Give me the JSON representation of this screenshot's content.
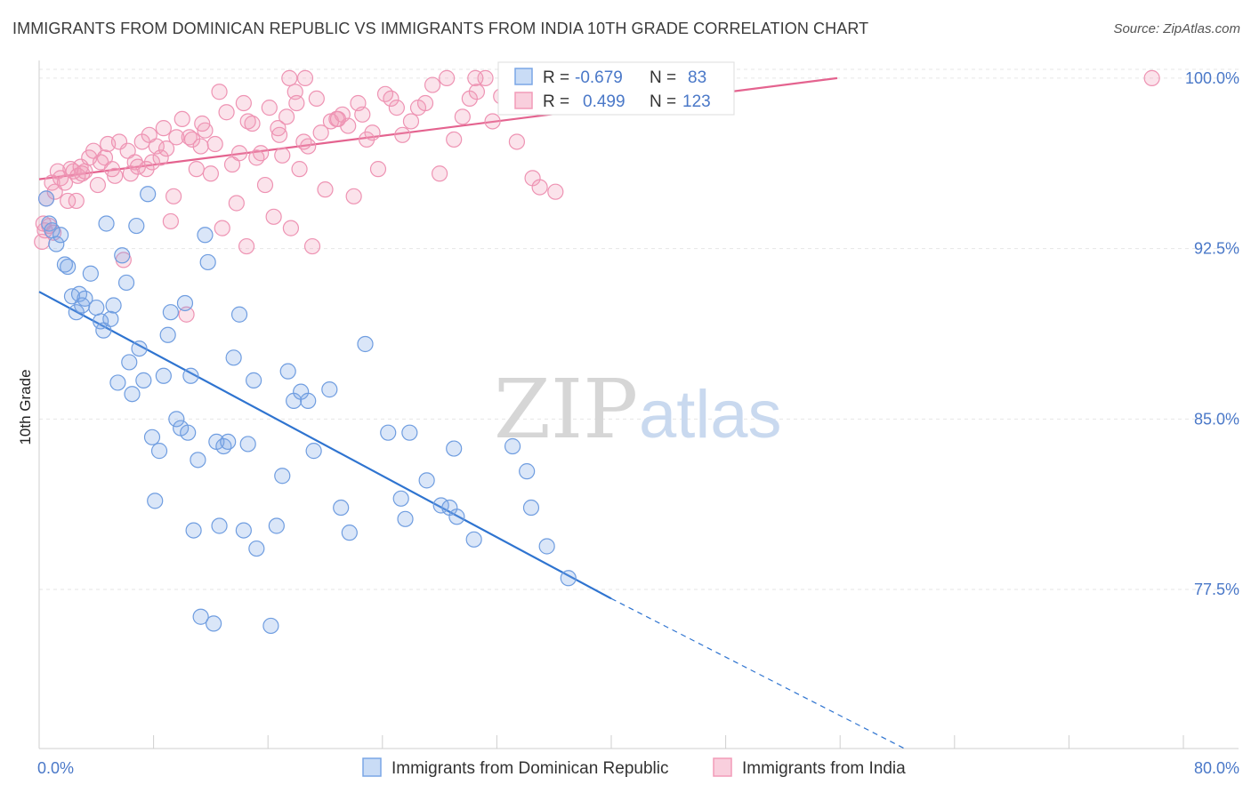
{
  "header": {
    "title": "IMMIGRANTS FROM DOMINICAN REPUBLIC VS IMMIGRANTS FROM INDIA 10TH GRADE CORRELATION CHART",
    "source": "Source: ZipAtlas.com"
  },
  "watermark": {
    "part1": "ZIP",
    "part2": "atlas"
  },
  "stats_box": {
    "rows": [
      {
        "r_label": "R =",
        "r_value": "-0.679",
        "n_label": "N =",
        "n_value": "83",
        "color": "#7aa6e6"
      },
      {
        "r_label": "R =",
        "r_value": "0.499",
        "n_label": "N =",
        "n_value": "123",
        "color": "#f29bb8"
      }
    ]
  },
  "legend": {
    "items": [
      {
        "label": "Immigrants from Dominican Republic",
        "color": "#7aa6e6"
      },
      {
        "label": "Immigrants from India",
        "color": "#f29bb8"
      }
    ]
  },
  "chart_data": {
    "type": "scatter",
    "xlabel": "",
    "ylabel": "10th Grade",
    "xlim": [
      0,
      80
    ],
    "ylim": [
      70.5,
      100.7
    ],
    "x_tick_labels": [
      "0.0%",
      "80.0%"
    ],
    "y_ticks": [
      77.5,
      85.0,
      92.5,
      100.0
    ],
    "y_tick_labels": [
      "77.5%",
      "85.0%",
      "92.5%",
      "100.0%"
    ],
    "grid": true,
    "legend_position": "bottom",
    "series": [
      {
        "name": "Immigrants from Dominican Republic",
        "color": "#7aa6e6",
        "trend": {
          "x0": 0,
          "y0": 90.6,
          "x1": 40,
          "y1": 77.1,
          "dash_to_x": 60.5,
          "dash_to_y": 70.5
        },
        "points": [
          [
            0.5,
            94.7
          ],
          [
            0.7,
            93.6
          ],
          [
            0.9,
            93.3
          ],
          [
            1.2,
            92.7
          ],
          [
            1.5,
            93.1
          ],
          [
            1.8,
            91.8
          ],
          [
            2.0,
            91.7
          ],
          [
            2.3,
            90.4
          ],
          [
            2.6,
            89.7
          ],
          [
            2.8,
            90.5
          ],
          [
            3.0,
            90.0
          ],
          [
            3.2,
            90.3
          ],
          [
            3.6,
            91.4
          ],
          [
            4.0,
            89.9
          ],
          [
            4.3,
            89.3
          ],
          [
            4.5,
            88.9
          ],
          [
            4.7,
            93.6
          ],
          [
            5.0,
            89.4
          ],
          [
            5.2,
            90.0
          ],
          [
            5.5,
            86.6
          ],
          [
            5.8,
            92.2
          ],
          [
            6.1,
            91.0
          ],
          [
            6.3,
            87.5
          ],
          [
            6.5,
            86.1
          ],
          [
            6.8,
            93.5
          ],
          [
            7.0,
            88.1
          ],
          [
            7.3,
            86.7
          ],
          [
            7.6,
            94.9
          ],
          [
            7.9,
            84.2
          ],
          [
            8.1,
            81.4
          ],
          [
            8.4,
            83.6
          ],
          [
            8.7,
            86.9
          ],
          [
            9.0,
            88.7
          ],
          [
            9.2,
            89.7
          ],
          [
            9.6,
            85.0
          ],
          [
            9.9,
            84.6
          ],
          [
            10.2,
            90.1
          ],
          [
            10.4,
            84.4
          ],
          [
            10.6,
            86.9
          ],
          [
            10.8,
            80.1
          ],
          [
            11.1,
            83.2
          ],
          [
            11.3,
            76.3
          ],
          [
            11.6,
            93.1
          ],
          [
            11.8,
            91.9
          ],
          [
            12.2,
            76.0
          ],
          [
            12.4,
            84.0
          ],
          [
            12.6,
            80.3
          ],
          [
            12.9,
            83.8
          ],
          [
            13.2,
            84.0
          ],
          [
            13.6,
            87.7
          ],
          [
            14.0,
            89.6
          ],
          [
            14.3,
            80.1
          ],
          [
            14.6,
            83.9
          ],
          [
            15.0,
            86.7
          ],
          [
            15.2,
            79.3
          ],
          [
            16.2,
            75.9
          ],
          [
            16.6,
            80.3
          ],
          [
            17.0,
            82.5
          ],
          [
            17.4,
            87.1
          ],
          [
            17.8,
            85.8
          ],
          [
            18.3,
            86.2
          ],
          [
            18.8,
            85.8
          ],
          [
            19.2,
            83.6
          ],
          [
            20.3,
            86.3
          ],
          [
            21.1,
            81.1
          ],
          [
            21.7,
            80.0
          ],
          [
            22.8,
            88.3
          ],
          [
            24.4,
            84.4
          ],
          [
            25.3,
            81.5
          ],
          [
            25.6,
            80.6
          ],
          [
            25.9,
            84.4
          ],
          [
            27.1,
            82.3
          ],
          [
            28.1,
            81.2
          ],
          [
            28.7,
            81.1
          ],
          [
            29.0,
            83.7
          ],
          [
            29.2,
            80.7
          ],
          [
            30.4,
            79.7
          ],
          [
            33.1,
            83.8
          ],
          [
            34.1,
            82.7
          ],
          [
            34.4,
            81.1
          ],
          [
            35.5,
            79.4
          ],
          [
            37.0,
            78.0
          ]
        ]
      },
      {
        "name": "Immigrants from India",
        "color": "#f29bb8",
        "trend": {
          "x0": 0,
          "y0": 95.55,
          "x1": 55.8,
          "y1": 100.0
        },
        "points": [
          [
            0.2,
            92.8
          ],
          [
            0.4,
            93.3
          ],
          [
            0.5,
            94.7
          ],
          [
            0.7,
            93.5
          ],
          [
            0.9,
            95.4
          ],
          [
            1.1,
            95.0
          ],
          [
            1.3,
            95.9
          ],
          [
            1.5,
            95.6
          ],
          [
            1.8,
            95.4
          ],
          [
            2.0,
            94.6
          ],
          [
            2.2,
            96.0
          ],
          [
            2.4,
            95.9
          ],
          [
            2.7,
            95.7
          ],
          [
            2.9,
            96.1
          ],
          [
            3.2,
            95.9
          ],
          [
            3.5,
            96.5
          ],
          [
            3.8,
            96.8
          ],
          [
            4.1,
            95.3
          ],
          [
            4.3,
            96.3
          ],
          [
            4.6,
            96.5
          ],
          [
            4.8,
            97.1
          ],
          [
            5.1,
            96.0
          ],
          [
            5.3,
            95.7
          ],
          [
            5.6,
            97.2
          ],
          [
            5.9,
            92.0
          ],
          [
            6.2,
            96.8
          ],
          [
            6.4,
            95.8
          ],
          [
            6.7,
            96.3
          ],
          [
            6.9,
            96.1
          ],
          [
            7.2,
            97.2
          ],
          [
            7.5,
            96.0
          ],
          [
            7.7,
            97.5
          ],
          [
            7.9,
            96.3
          ],
          [
            8.2,
            97.0
          ],
          [
            8.5,
            96.5
          ],
          [
            8.7,
            97.8
          ],
          [
            8.9,
            96.9
          ],
          [
            9.2,
            93.7
          ],
          [
            9.4,
            94.8
          ],
          [
            9.6,
            97.4
          ],
          [
            10.0,
            98.2
          ],
          [
            10.3,
            89.6
          ],
          [
            10.5,
            97.4
          ],
          [
            10.7,
            97.3
          ],
          [
            11.0,
            96.0
          ],
          [
            11.3,
            97.0
          ],
          [
            11.6,
            97.7
          ],
          [
            12.0,
            95.8
          ],
          [
            12.3,
            97.1
          ],
          [
            12.6,
            99.4
          ],
          [
            12.8,
            93.4
          ],
          [
            13.1,
            98.5
          ],
          [
            13.5,
            96.2
          ],
          [
            13.8,
            94.5
          ],
          [
            14.0,
            96.7
          ],
          [
            14.3,
            98.9
          ],
          [
            14.6,
            98.1
          ],
          [
            14.9,
            98.0
          ],
          [
            15.2,
            96.5
          ],
          [
            15.5,
            96.7
          ],
          [
            15.8,
            95.3
          ],
          [
            16.1,
            98.7
          ],
          [
            16.4,
            93.9
          ],
          [
            16.7,
            97.8
          ],
          [
            17.0,
            96.6
          ],
          [
            17.3,
            98.3
          ],
          [
            17.6,
            93.4
          ],
          [
            17.9,
            99.4
          ],
          [
            18.2,
            96.0
          ],
          [
            18.5,
            97.2
          ],
          [
            18.8,
            97.0
          ],
          [
            19.1,
            92.6
          ],
          [
            19.4,
            99.1
          ],
          [
            19.7,
            97.6
          ],
          [
            20.0,
            95.1
          ],
          [
            20.4,
            98.1
          ],
          [
            20.8,
            98.2
          ],
          [
            21.2,
            98.4
          ],
          [
            21.6,
            97.9
          ],
          [
            22.0,
            94.8
          ],
          [
            22.3,
            98.9
          ],
          [
            22.6,
            98.4
          ],
          [
            22.9,
            97.3
          ],
          [
            23.3,
            97.6
          ],
          [
            23.7,
            96.0
          ],
          [
            24.2,
            99.3
          ],
          [
            24.6,
            99.1
          ],
          [
            25.0,
            98.7
          ],
          [
            25.4,
            97.5
          ],
          [
            26.0,
            98.1
          ],
          [
            26.5,
            98.7
          ],
          [
            27.0,
            98.9
          ],
          [
            27.5,
            99.7
          ],
          [
            28.0,
            95.8
          ],
          [
            28.5,
            100.0
          ],
          [
            29.0,
            97.3
          ],
          [
            29.6,
            98.3
          ],
          [
            30.1,
            99.1
          ],
          [
            30.6,
            99.4
          ],
          [
            31.2,
            100.0
          ],
          [
            31.7,
            98.1
          ],
          [
            32.3,
            99.2
          ],
          [
            32.8,
            99.9
          ],
          [
            33.4,
            97.2
          ],
          [
            34.0,
            99.6
          ],
          [
            34.5,
            95.6
          ],
          [
            35.0,
            95.2
          ],
          [
            35.5,
            99.2
          ],
          [
            36.1,
            95.0
          ],
          [
            36.6,
            99.5
          ],
          [
            14.5,
            92.6
          ],
          [
            16.8,
            97.5
          ],
          [
            20.9,
            98.2
          ],
          [
            30.5,
            100.0
          ],
          [
            77.8,
            100.0
          ],
          [
            11.4,
            98.0
          ],
          [
            17.5,
            100.0
          ],
          [
            18.6,
            100.0
          ],
          [
            0.3,
            93.6
          ],
          [
            1.0,
            93.2
          ],
          [
            2.6,
            94.6
          ],
          [
            3.0,
            95.8
          ],
          [
            18.0,
            98.9
          ]
        ]
      }
    ]
  }
}
